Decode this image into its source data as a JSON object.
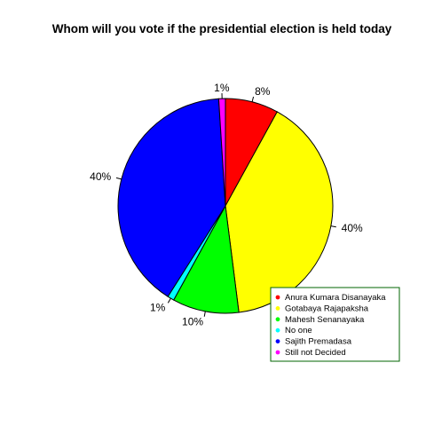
{
  "chart_data": {
    "type": "pie",
    "title": "Whom will you vote if the presidential election is held today",
    "slices": [
      {
        "name": "Anura Kumara Disanayaka",
        "value": 8,
        "label": "8%",
        "color": "#ff0000"
      },
      {
        "name": "Gotabaya Rajapaksha",
        "value": 40,
        "label": "40%",
        "color": "#ffff00"
      },
      {
        "name": "Mahesh Senanayaka",
        "value": 10,
        "label": "10%",
        "color": "#00ff00"
      },
      {
        "name": "No one",
        "value": 1,
        "label": "1%",
        "color": "#00ffff"
      },
      {
        "name": "Sajith Premadasa",
        "value": 40,
        "label": "40%",
        "color": "#0000ff"
      },
      {
        "name": "Still not Decided",
        "value": 1,
        "label": "1%",
        "color": "#ff00ff"
      }
    ],
    "direction": "clockwise",
    "start": "top",
    "legend_position": "bottom-right",
    "legend_border_color": "#006400"
  }
}
